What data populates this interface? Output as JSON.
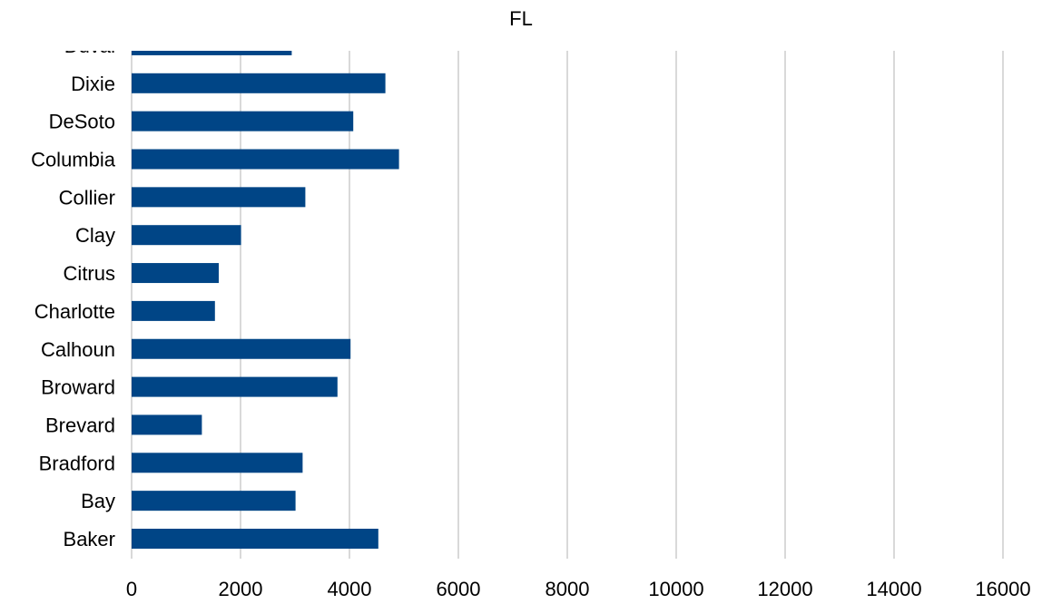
{
  "chart_data": {
    "type": "bar",
    "orientation": "horizontal",
    "title": "FL",
    "xlabel": "",
    "ylabel": "",
    "xlim": [
      0,
      16000
    ],
    "x_ticks": [
      "0",
      "2000",
      "4000",
      "6000",
      "8000",
      "10000",
      "12000",
      "14000",
      "16000"
    ],
    "categories": [
      "Baker",
      "Bay",
      "Bradford",
      "Brevard",
      "Broward",
      "Calhoun",
      "Charlotte",
      "Citrus",
      "Clay",
      "Collier",
      "Columbia",
      "DeSoto",
      "Dixie",
      "Duval"
    ],
    "values": [
      4530,
      3010,
      3140,
      1290,
      3780,
      4020,
      1530,
      1600,
      2010,
      3190,
      4910,
      4070,
      4660,
      2940
    ],
    "bar_color": "#004586",
    "grid": "vertical",
    "legend": "none"
  }
}
